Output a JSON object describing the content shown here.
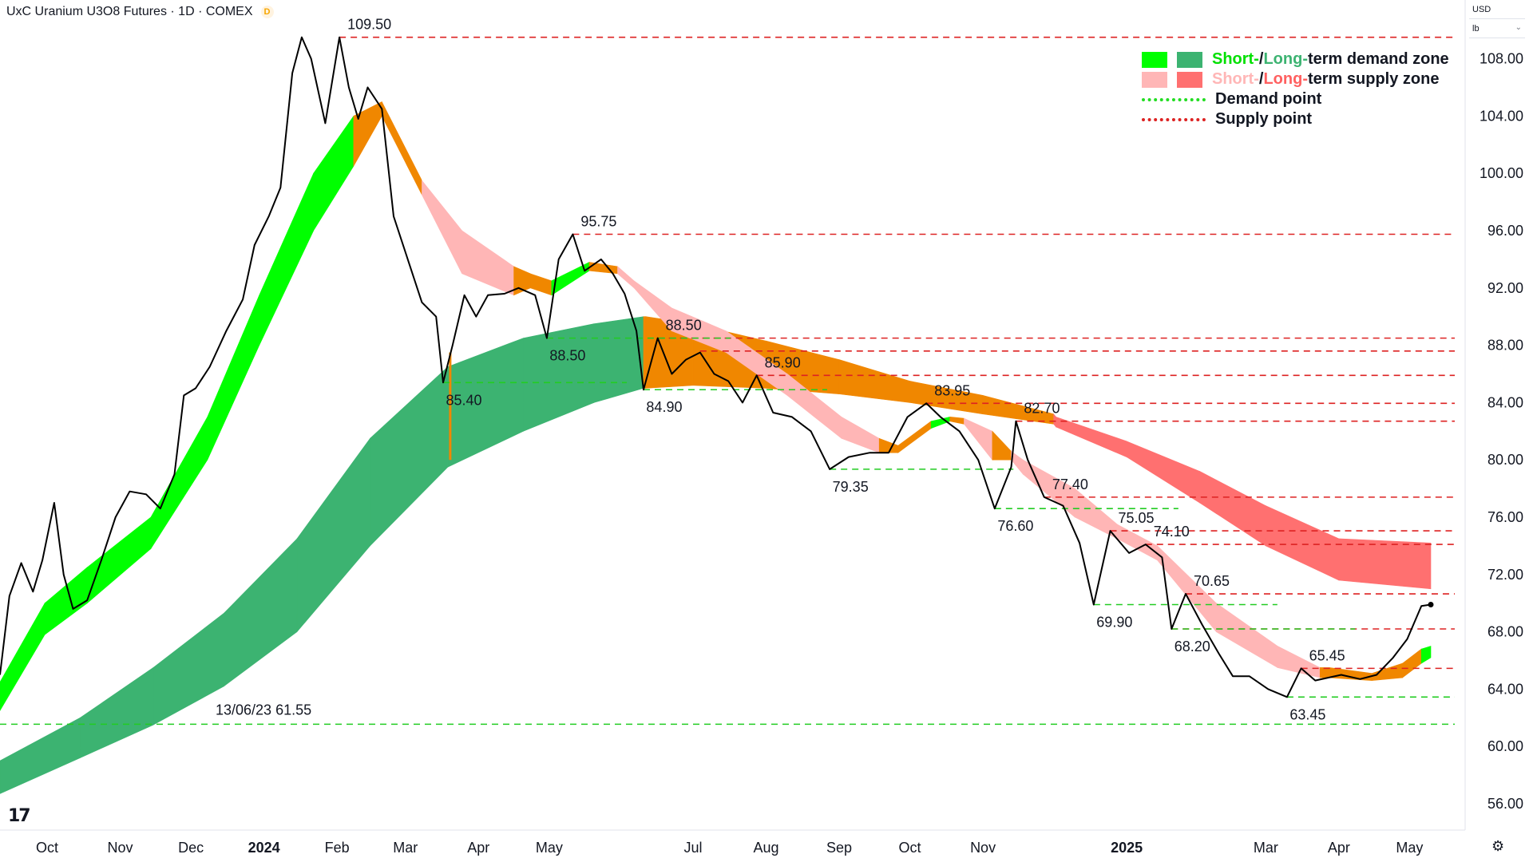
{
  "header": {
    "title": "UxC Uranium U3O8 Futures · 1D · COMEX",
    "badge": "D"
  },
  "price_scale": {
    "currency": "USD",
    "unit": "lb"
  },
  "legend": {
    "demand_zone": {
      "short": "Short-",
      "sep": " / ",
      "long": "Long-",
      "rest": "term demand zone"
    },
    "supply_zone": {
      "short": "Short-",
      "sep": " / ",
      "long": "Long-",
      "rest": "term supply zone"
    },
    "demand_point": "Demand point",
    "supply_point": "Supply point"
  },
  "colors": {
    "short_demand": "#00ff00",
    "long_demand": "#3cb371",
    "short_supply": "#ffb6b6",
    "long_supply": "#ff7070",
    "transition": "#f08700",
    "demand_line": "#22cc22",
    "supply_line": "#dd2222",
    "price": "#000000"
  },
  "chart_data": {
    "type": "line",
    "title": "UxC Uranium U3O8 Futures · 1D · COMEX",
    "ylim": [
      54,
      111
    ],
    "yticks": [
      56,
      60,
      64,
      68,
      72,
      76,
      80,
      84,
      88,
      92,
      96,
      100,
      104,
      108
    ],
    "ytick_labels": [
      "56.00",
      "60.00",
      "64.00",
      "68.00",
      "72.00",
      "76.00",
      "80.00",
      "84.00",
      "88.00",
      "92.00",
      "96.00",
      "100.00",
      "104.00",
      "108.00"
    ],
    "xticks": [
      {
        "date": "2023-10-01",
        "label": "Oct",
        "bold": false
      },
      {
        "date": "2023-11-01",
        "label": "Nov",
        "bold": false
      },
      {
        "date": "2023-12-01",
        "label": "Dec",
        "bold": false
      },
      {
        "date": "2024-01-01",
        "label": "2024",
        "bold": true
      },
      {
        "date": "2024-02-01",
        "label": "Feb",
        "bold": false
      },
      {
        "date": "2024-03-01",
        "label": "Mar",
        "bold": false
      },
      {
        "date": "2024-04-01",
        "label": "Apr",
        "bold": false
      },
      {
        "date": "2024-05-01",
        "label": "May",
        "bold": false
      },
      {
        "date": "2024-07-01",
        "label": "Jul",
        "bold": false
      },
      {
        "date": "2024-08-01",
        "label": "Aug",
        "bold": false
      },
      {
        "date": "2024-09-01",
        "label": "Sep",
        "bold": false
      },
      {
        "date": "2024-10-01",
        "label": "Oct",
        "bold": false
      },
      {
        "date": "2024-11-01",
        "label": "Nov",
        "bold": false
      },
      {
        "date": "2025-01-01",
        "label": "2025",
        "bold": true
      },
      {
        "date": "2025-03-01",
        "label": "Mar",
        "bold": false
      },
      {
        "date": "2025-04-01",
        "label": "Apr",
        "bold": false
      },
      {
        "date": "2025-05-01",
        "label": "May",
        "bold": false
      }
    ],
    "price": [
      [
        "2023-09-11",
        65.0
      ],
      [
        "2023-09-15",
        70.5
      ],
      [
        "2023-09-20",
        72.8
      ],
      [
        "2023-09-25",
        70.8
      ],
      [
        "2023-09-29",
        73.0
      ],
      [
        "2023-10-04",
        77.0
      ],
      [
        "2023-10-08",
        72.0
      ],
      [
        "2023-10-12",
        69.6
      ],
      [
        "2023-10-18",
        70.2
      ],
      [
        "2023-10-24",
        73.0
      ],
      [
        "2023-10-30",
        76.0
      ],
      [
        "2023-11-05",
        77.8
      ],
      [
        "2023-11-12",
        77.6
      ],
      [
        "2023-11-18",
        76.6
      ],
      [
        "2023-11-24",
        79.0
      ],
      [
        "2023-11-28",
        84.5
      ],
      [
        "2023-12-03",
        85.0
      ],
      [
        "2023-12-09",
        86.5
      ],
      [
        "2023-12-16",
        89.0
      ],
      [
        "2023-12-23",
        91.2
      ],
      [
        "2023-12-28",
        95.0
      ],
      [
        "2024-01-03",
        97.0
      ],
      [
        "2024-01-08",
        99.0
      ],
      [
        "2024-01-13",
        107.0
      ],
      [
        "2024-01-17",
        109.5
      ],
      [
        "2024-01-21",
        108.0
      ],
      [
        "2024-01-27",
        103.5
      ],
      [
        "2024-02-02",
        109.5
      ],
      [
        "2024-02-06",
        106.0
      ],
      [
        "2024-02-10",
        103.8
      ],
      [
        "2024-02-14",
        106.0
      ],
      [
        "2024-02-20",
        104.5
      ],
      [
        "2024-02-25",
        97.0
      ],
      [
        "2024-03-02",
        94.0
      ],
      [
        "2024-03-08",
        91.0
      ],
      [
        "2024-03-14",
        90.0
      ],
      [
        "2024-03-17",
        85.4
      ],
      [
        "2024-03-21",
        88.0
      ],
      [
        "2024-03-26",
        91.5
      ],
      [
        "2024-03-31",
        90.0
      ],
      [
        "2024-04-05",
        91.5
      ],
      [
        "2024-04-12",
        91.6
      ],
      [
        "2024-04-18",
        92.0
      ],
      [
        "2024-04-25",
        91.5
      ],
      [
        "2024-04-30",
        88.5
      ],
      [
        "2024-05-05",
        94.0
      ],
      [
        "2024-05-11",
        95.75
      ],
      [
        "2024-05-16",
        93.2
      ],
      [
        "2024-05-23",
        94.0
      ],
      [
        "2024-05-28",
        93.0
      ],
      [
        "2024-06-02",
        91.6
      ],
      [
        "2024-06-07",
        89.0
      ],
      [
        "2024-06-10",
        84.9
      ],
      [
        "2024-06-16",
        88.5
      ],
      [
        "2024-06-22",
        86.0
      ],
      [
        "2024-06-28",
        87.0
      ],
      [
        "2024-07-04",
        87.5
      ],
      [
        "2024-07-10",
        86.0
      ],
      [
        "2024-07-16",
        85.5
      ],
      [
        "2024-07-22",
        84.0
      ],
      [
        "2024-07-28",
        85.9
      ],
      [
        "2024-08-04",
        83.3
      ],
      [
        "2024-08-12",
        83.0
      ],
      [
        "2024-08-20",
        82.0
      ],
      [
        "2024-08-28",
        79.35
      ],
      [
        "2024-09-05",
        80.2
      ],
      [
        "2024-09-14",
        80.5
      ],
      [
        "2024-09-22",
        80.5
      ],
      [
        "2024-09-30",
        83.0
      ],
      [
        "2024-10-08",
        83.95
      ],
      [
        "2024-10-14",
        83.0
      ],
      [
        "2024-10-22",
        82.0
      ],
      [
        "2024-10-30",
        80.0
      ],
      [
        "2024-11-06",
        76.6
      ],
      [
        "2024-11-13",
        79.5
      ],
      [
        "2024-11-15",
        82.7
      ],
      [
        "2024-11-20",
        80.0
      ],
      [
        "2024-11-27",
        77.4
      ],
      [
        "2024-12-05",
        76.8
      ],
      [
        "2024-12-12",
        74.2
      ],
      [
        "2024-12-18",
        69.9
      ],
      [
        "2024-12-25",
        75.05
      ],
      [
        "2025-01-02",
        73.5
      ],
      [
        "2025-01-09",
        74.1
      ],
      [
        "2025-01-16",
        73.2
      ],
      [
        "2025-01-20",
        68.2
      ],
      [
        "2025-01-26",
        70.65
      ],
      [
        "2025-02-02",
        68.5
      ],
      [
        "2025-02-09",
        66.5
      ],
      [
        "2025-02-15",
        64.9
      ],
      [
        "2025-02-22",
        64.9
      ],
      [
        "2025-03-02",
        64.0
      ],
      [
        "2025-03-10",
        63.45
      ],
      [
        "2025-03-16",
        65.45
      ],
      [
        "2025-03-22",
        64.6
      ],
      [
        "2025-04-02",
        65.0
      ],
      [
        "2025-04-10",
        64.7
      ],
      [
        "2025-04-17",
        65.0
      ],
      [
        "2025-04-24",
        66.2
      ],
      [
        "2025-04-30",
        67.5
      ],
      [
        "2025-05-06",
        69.8
      ],
      [
        "2025-05-10",
        69.9
      ]
    ],
    "short_term_zone": [
      [
        "2023-09-11",
        62.5,
        64.5,
        "sd"
      ],
      [
        "2023-09-30",
        67.8,
        70.0,
        "sd"
      ],
      [
        "2023-10-18",
        70.0,
        72.5,
        "sd"
      ],
      [
        "2023-11-14",
        73.8,
        76.0,
        "sd"
      ],
      [
        "2023-12-08",
        80.0,
        83.0,
        "sd"
      ],
      [
        "2023-12-30",
        88.0,
        91.5,
        "sd"
      ],
      [
        "2024-01-22",
        96.0,
        100.0,
        "sd"
      ],
      [
        "2024-02-08",
        100.5,
        104.0,
        "sd"
      ],
      [
        "2024-02-20",
        104.0,
        105.0,
        "tr"
      ],
      [
        "2024-03-08",
        98.5,
        99.5,
        "tr"
      ],
      [
        "2024-03-25",
        93.0,
        96.0,
        "ss"
      ],
      [
        "2024-04-16",
        91.5,
        93.5,
        "ss"
      ],
      [
        "2024-04-23",
        92.0,
        93.0,
        "tr"
      ],
      [
        "2024-05-02",
        91.5,
        92.5,
        "tr"
      ],
      [
        "2024-05-18",
        93.2,
        93.8,
        "sd"
      ],
      [
        "2024-05-30",
        93.0,
        93.5,
        "tr"
      ],
      [
        "2024-06-06",
        92.0,
        92.5,
        "ss"
      ],
      [
        "2024-06-22",
        89.0,
        90.6,
        "ss"
      ],
      [
        "2024-07-15",
        87.5,
        89.0,
        "ss"
      ],
      [
        "2024-08-10",
        84.5,
        86.0,
        "ss"
      ],
      [
        "2024-09-02",
        81.5,
        83.0,
        "ss"
      ],
      [
        "2024-09-18",
        80.5,
        81.5,
        "ss"
      ],
      [
        "2024-09-26",
        80.5,
        81.0,
        "tr"
      ],
      [
        "2024-10-10",
        82.2,
        82.7,
        "tr"
      ],
      [
        "2024-10-18",
        82.7,
        83.0,
        "sd"
      ],
      [
        "2024-10-24",
        82.5,
        82.9,
        "tr"
      ],
      [
        "2024-11-05",
        80.0,
        82.0,
        "ss"
      ],
      [
        "2024-11-13",
        80.0,
        80.6,
        "tr"
      ],
      [
        "2024-11-18",
        79.0,
        80.0,
        "ss"
      ],
      [
        "2024-12-10",
        76.0,
        78.0,
        "ss"
      ],
      [
        "2024-12-28",
        74.5,
        75.5,
        "ss"
      ],
      [
        "2025-01-14",
        73.0,
        74.0,
        "ss"
      ],
      [
        "2025-02-08",
        68.0,
        70.0,
        "ss"
      ],
      [
        "2025-03-06",
        65.5,
        67.0,
        "ss"
      ],
      [
        "2025-03-24",
        64.8,
        65.5,
        "ss"
      ],
      [
        "2025-03-28",
        64.8,
        65.5,
        "tr"
      ],
      [
        "2025-04-15",
        64.6,
        65.1,
        "tr"
      ],
      [
        "2025-04-28",
        64.8,
        65.8,
        "tr"
      ],
      [
        "2025-05-06",
        65.8,
        66.8,
        "tr"
      ],
      [
        "2025-05-10",
        66.2,
        67.0,
        "sd"
      ]
    ],
    "long_term_zone": [
      [
        "2023-09-11",
        56.7,
        59.0,
        "ld"
      ],
      [
        "2023-10-15",
        59.2,
        62.0,
        "ld"
      ],
      [
        "2023-11-15",
        61.5,
        65.5,
        "ld"
      ],
      [
        "2023-12-15",
        64.2,
        69.3,
        "ld"
      ],
      [
        "2024-01-15",
        68.0,
        74.5,
        "ld"
      ],
      [
        "2024-02-15",
        74.0,
        81.5,
        "ld"
      ],
      [
        "2024-03-19",
        79.5,
        86.5,
        "ld"
      ],
      [
        "2024-04-20",
        82.0,
        88.5,
        "ld"
      ],
      [
        "2024-05-20",
        84.0,
        89.5,
        "ld"
      ],
      [
        "2024-06-10",
        85.0,
        90.0,
        "ld"
      ],
      [
        "2024-06-11",
        85.0,
        90.0,
        "tr"
      ],
      [
        "2024-07-01",
        85.2,
        89.5,
        "tr"
      ],
      [
        "2024-08-01",
        85.0,
        88.3,
        "tr"
      ],
      [
        "2024-09-01",
        84.6,
        87.0,
        "tr"
      ],
      [
        "2024-10-01",
        84.0,
        85.5,
        "tr"
      ],
      [
        "2024-11-01",
        83.2,
        84.5,
        "tr"
      ],
      [
        "2024-12-01",
        82.5,
        83.2,
        "tr"
      ],
      [
        "2024-12-02",
        82.3,
        83.0,
        "ls"
      ],
      [
        "2025-01-01",
        80.2,
        81.3,
        "ls"
      ],
      [
        "2025-02-01",
        77.0,
        79.2,
        "ls"
      ],
      [
        "2025-03-01",
        74.0,
        76.8,
        "ls"
      ],
      [
        "2025-04-01",
        71.6,
        74.5,
        "ls"
      ],
      [
        "2025-05-10",
        71.0,
        74.2,
        "ls"
      ]
    ],
    "zone_markers": [
      {
        "date": "2024-03-20",
        "low": 80.0,
        "high": 87.5
      }
    ],
    "supply_points": [
      {
        "value": 109.5,
        "label": "109.50",
        "date": "2024-02-02"
      },
      {
        "value": 95.75,
        "label": "95.75",
        "date": "2024-05-11"
      },
      {
        "value": 88.5,
        "label": "88.50",
        "date": "2024-06-16"
      },
      {
        "value": 87.6,
        "label": "",
        "date": "2024-07-04"
      },
      {
        "value": 85.9,
        "label": "85.90",
        "date": "2024-07-28"
      },
      {
        "value": 83.95,
        "label": "83.95",
        "date": "2024-10-08"
      },
      {
        "value": 82.7,
        "label": "82.70",
        "date": "2024-11-15"
      },
      {
        "value": 77.4,
        "label": "77.40",
        "date": "2024-11-27"
      },
      {
        "value": 75.05,
        "label": "75.05",
        "date": "2024-12-25"
      },
      {
        "value": 74.1,
        "label": "74.10",
        "date": "2025-01-09"
      },
      {
        "value": 70.65,
        "label": "70.65",
        "date": "2025-01-26"
      },
      {
        "value": 68.2,
        "label": "",
        "date": "2025-01-20"
      },
      {
        "value": 65.45,
        "label": "65.45",
        "date": "2025-03-16"
      }
    ],
    "demand_points": [
      {
        "value": 61.55,
        "label": "13/06/23 61.55",
        "date": "2023-12-01"
      },
      {
        "value": 85.4,
        "label": "85.40",
        "date": "2024-03-17"
      },
      {
        "value": 88.5,
        "label": "88.50",
        "date": "2024-04-30"
      },
      {
        "value": 84.9,
        "label": "84.90",
        "date": "2024-06-10"
      },
      {
        "value": 79.35,
        "label": "79.35",
        "date": "2024-08-28"
      },
      {
        "value": 76.6,
        "label": "76.60",
        "date": "2024-11-06"
      },
      {
        "value": 69.9,
        "label": "69.90",
        "date": "2024-12-18"
      },
      {
        "value": 68.2,
        "label": "68.20",
        "date": "2025-01-20"
      },
      {
        "value": 63.45,
        "label": "63.45",
        "date": "2025-03-10"
      }
    ],
    "legend_position": "top-right",
    "grid": false
  }
}
